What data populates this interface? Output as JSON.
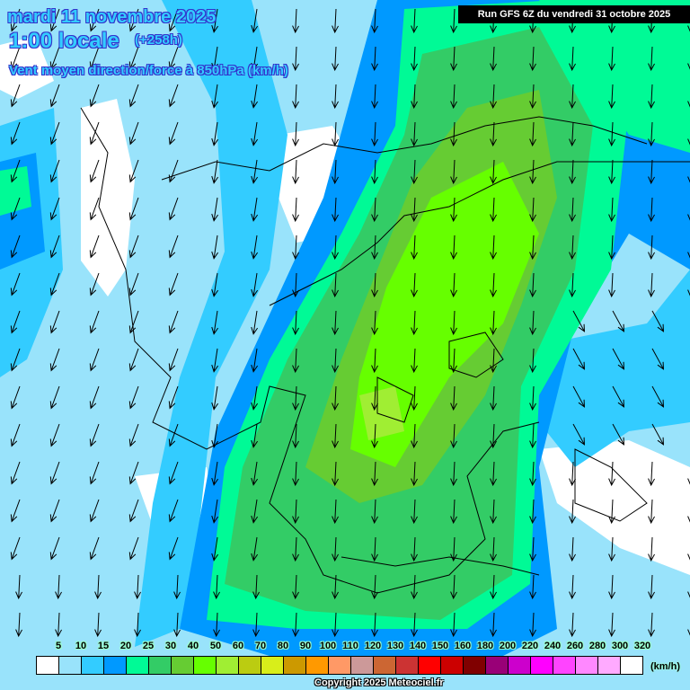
{
  "header": {
    "date": "mardi 11 novembre 2025",
    "hour": "1:00 locale",
    "lead": "(+258h)",
    "parameter": "Vent moyen direction/force à 850hPa (km/h)",
    "run": "Run GFS 6Z du vendredi 31 octobre 2025"
  },
  "legend": {
    "labels": [
      "5",
      "10",
      "15",
      "20",
      "25",
      "30",
      "40",
      "50",
      "60",
      "70",
      "80",
      "90",
      "100",
      "110",
      "120",
      "130",
      "140",
      "150",
      "160",
      "180",
      "200",
      "220",
      "240",
      "260",
      "280",
      "300",
      "320"
    ],
    "colors": [
      "#ffffff",
      "#99e3fb",
      "#33ccff",
      "#0099ff",
      "#00fa96",
      "#33cc66",
      "#66cc33",
      "#66ff00",
      "#a0ee33",
      "#bbcc11",
      "#d8ee1a",
      "#cc9900",
      "#ff9900",
      "#ff9966",
      "#cc9999",
      "#cc6633",
      "#cc3333",
      "#ff0000",
      "#cc0000",
      "#800000",
      "#990077",
      "#cc00cc",
      "#ff00ff",
      "#ff44ff",
      "#ff88ff",
      "#ffaaff",
      "#ffffff"
    ],
    "unit": "(km/h)"
  },
  "footer": {
    "copyright": "Copyright 2025 Meteociel.fr"
  }
}
